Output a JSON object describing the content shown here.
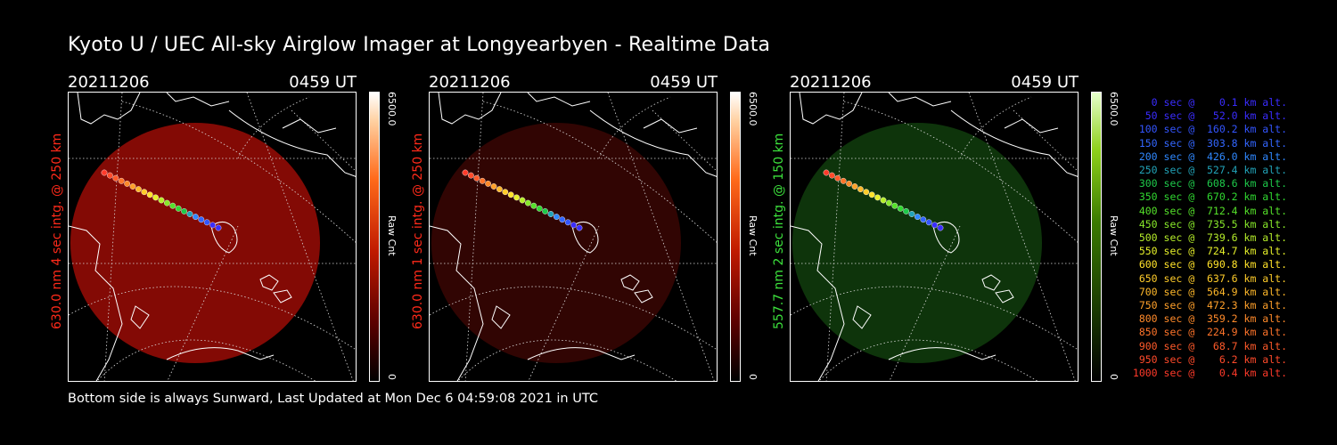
{
  "title": "Kyoto U / UEC All-sky Airglow Imager at Longyearbyen - Realtime Data",
  "footer": "Bottom side is always Sunward, Last Updated at Mon Dec  6 04:59:08 2021 in UTC",
  "colors": {
    "red": "#ff2a1a",
    "green": "#3ce03c"
  },
  "panels": [
    {
      "date": "20211206",
      "time": "0459 UT",
      "side_label": "630.0 nm  4 sec intg. @ 250 km",
      "side_color": "#ff2a1a",
      "cb_max": "6500.0",
      "cb_unit": "Raw Cnt",
      "cb_min": "0",
      "gradient": "red",
      "disk_color": "#9a0c06",
      "disk_opacity": 0.85
    },
    {
      "date": "20211206",
      "time": "0459 UT",
      "side_label": "630.0 nm  1 sec intg. @ 250 km",
      "side_color": "#ff2a1a",
      "cb_max": "6500.0",
      "cb_unit": "Raw Cnt",
      "cb_min": "0",
      "gradient": "red",
      "disk_color": "#3a0603",
      "disk_opacity": 0.85
    },
    {
      "date": "20211206",
      "time": "0459 UT",
      "side_label": "557.7 nm  2 sec intg. @ 150 km",
      "side_color": "#3ce03c",
      "cb_max": "6500.0",
      "cb_unit": "Raw Cnt",
      "cb_min": "0",
      "gradient": "green",
      "disk_color": "#0f3a0c",
      "disk_opacity": 0.9
    }
  ],
  "legend": [
    {
      "text": "   0 sec @    0.1 km alt.",
      "color": "#3a2cff"
    },
    {
      "text": "  50 sec @   52.0 km alt.",
      "color": "#3a2cff"
    },
    {
      "text": " 100 sec @  160.2 km alt.",
      "color": "#3355ff"
    },
    {
      "text": " 150 sec @  303.8 km alt.",
      "color": "#3366ff"
    },
    {
      "text": " 200 sec @  426.0 km alt.",
      "color": "#2f88ff"
    },
    {
      "text": " 250 sec @  527.4 km alt.",
      "color": "#22a3b8"
    },
    {
      "text": " 300 sec @  608.6 km alt.",
      "color": "#1ec94a"
    },
    {
      "text": " 350 sec @  670.2 km alt.",
      "color": "#30d830"
    },
    {
      "text": " 400 sec @  712.4 km alt.",
      "color": "#55e02a"
    },
    {
      "text": " 450 sec @  735.5 km alt.",
      "color": "#88e82a"
    },
    {
      "text": " 500 sec @  739.6 km alt.",
      "color": "#b6ee2a"
    },
    {
      "text": " 550 sec @  724.7 km alt.",
      "color": "#e6f02a"
    },
    {
      "text": " 600 sec @  690.8 km alt.",
      "color": "#ffe22a"
    },
    {
      "text": " 650 sec @  637.6 km alt.",
      "color": "#ffcc2a"
    },
    {
      "text": " 700 sec @  564.9 km alt.",
      "color": "#ffb82a"
    },
    {
      "text": " 750 sec @  472.3 km alt.",
      "color": "#ffa02a"
    },
    {
      "text": " 800 sec @  359.2 km alt.",
      "color": "#ff8a2a"
    },
    {
      "text": " 850 sec @  224.9 km alt.",
      "color": "#ff742a"
    },
    {
      "text": " 900 sec @   68.7 km alt.",
      "color": "#ff5a2a"
    },
    {
      "text": " 950 sec @    6.2 km alt.",
      "color": "#ff4a2a"
    },
    {
      "text": "1000 sec @    0.4 km alt.",
      "color": "#ff3a2a"
    }
  ]
}
